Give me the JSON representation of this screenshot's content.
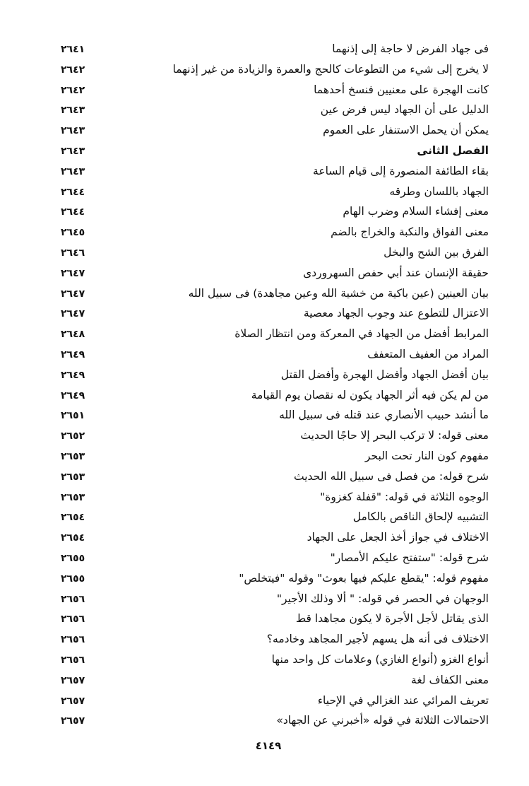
{
  "entries": [
    {
      "title": "فى جهاد الفرض لا حاجة إلى إذنهما",
      "page": "٢٦٤١"
    },
    {
      "title": "لا يخرج إلى شيء من التطوعات كالحج والعمرة والزيادة من غير إذنهما",
      "page": "٢٦٤٢"
    },
    {
      "title": "كانت الهجرة على معنيين فنسخ أحدهما",
      "page": "٢٦٤٢"
    },
    {
      "title": "الدليل على أن الجهاد ليس فرض عين",
      "page": "٢٦٤٣"
    },
    {
      "title": "يمكن أن يحمل الاستنفار على العموم",
      "page": "٢٦٤٣"
    },
    {
      "title": "الفصل الثانى",
      "page": "٢٦٤٣",
      "heading": true
    },
    {
      "title": "بقاء الطائفة المنصورة إلى قيام الساعة",
      "page": "٢٦٤٣"
    },
    {
      "title": "الجهاد باللسان وطرقه",
      "page": "٢٦٤٤"
    },
    {
      "title": "معنى إفشاء السلام وضرب الهام",
      "page": "٢٦٤٤"
    },
    {
      "title": "معنى الفواق والنكبة والخراج بالضم",
      "page": "٢٦٤٥"
    },
    {
      "title": "الفرق بين الشح والبخل",
      "page": "٢٦٤٦"
    },
    {
      "title": "حقيقة الإنسان عند أبي حفص السهروردى",
      "page": "٢٦٤٧"
    },
    {
      "title": "بيان العينين (عين باكية من خشية الله وعين مجاهدة) فى سبيل الله",
      "page": "٢٦٤٧"
    },
    {
      "title": "الاعتزال للتطوع عند وجوب الجهاد معصية",
      "page": "٢٦٤٧"
    },
    {
      "title": "المرابط أفضل من الجهاد في المعركة ومن انتظار الصلاة",
      "page": "٢٦٤٨"
    },
    {
      "title": "المراد من العفيف المتعفف",
      "page": "٢٦٤٩"
    },
    {
      "title": "بيان أفضل الجهاد وأفضل الهجرة وأفضل القتل",
      "page": "٢٦٤٩"
    },
    {
      "title": "من لم يكن فيه أثر الجهاد يكون له نقصان يوم القيامة",
      "page": "٢٦٤٩"
    },
    {
      "title": "ما أنشد حبيب الأنصاري عند قتله فى سبيل الله",
      "page": "٢٦٥١"
    },
    {
      "title": "معنى قوله: لا تركب البحر إلا حاجًا الحديث",
      "page": "٢٦٥٢"
    },
    {
      "title": "مفهوم كون النار تحت البحر",
      "page": "٢٦٥٣"
    },
    {
      "title": "شرح قوله: من فصل فى سبيل الله الحديث",
      "page": "٢٦٥٣"
    },
    {
      "title": "الوجوه الثلاثة في قوله: \"قفلة كغزوة\"",
      "page": "٢٦٥٣"
    },
    {
      "title": "التشبيه لإلحاق الناقص بالكامل",
      "page": "٢٦٥٤"
    },
    {
      "title": "الاختلاف في جواز أخذ الجعل على الجهاد",
      "page": "٢٦٥٤"
    },
    {
      "title": "شرح قوله: \"ستفتح عليكم الأمصار\"",
      "page": "٢٦٥٥"
    },
    {
      "title": "مفهوم قوله: \"يقطع عليكم فيها بعوث\" وقوله \"فيتخلص\"",
      "page": "٢٦٥٥"
    },
    {
      "title": "الوجهان في الحصر في قوله: \" ألا وذلك الأجير\"",
      "page": "٢٦٥٦"
    },
    {
      "title": "الذى يقاتل لأجل الأجرة لا يكون مجاهدا قط",
      "page": "٢٦٥٦"
    },
    {
      "title": "الاختلاف فى أنه هل يسهم لأجير المجاهد وخادمه؟",
      "page": "٢٦٥٦"
    },
    {
      "title": "أنواع الغزو (أنواع الغازي) وعلامات كل واحد منها",
      "page": "٢٦٥٦"
    },
    {
      "title": "معنى الكفاف لغة",
      "page": "٢٦٥٧"
    },
    {
      "title": "تعريف المرائي عند الغزالي في الإحياء",
      "page": "٢٦٥٧"
    },
    {
      "title": "الاحتمالات الثلاثة في قوله «أخبرني عن الجهاد»",
      "page": "٢٦٥٧"
    }
  ],
  "footer": {
    "page_number": "٤١٤٩"
  }
}
